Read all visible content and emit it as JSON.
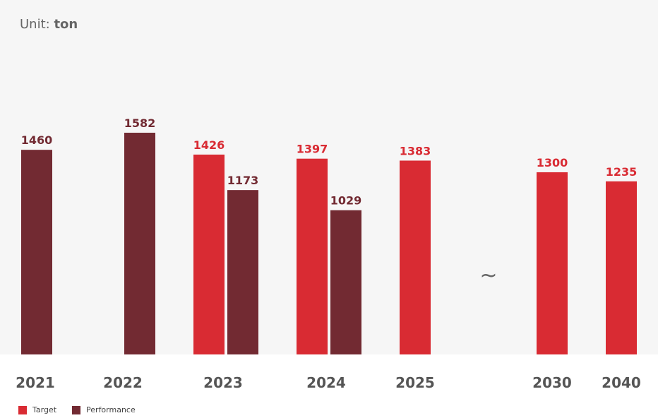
{
  "unit": {
    "prefix": "Unit:",
    "value": "ton"
  },
  "axis_break": "~",
  "colors": {
    "target": "#d92b33",
    "performance": "#722a32",
    "target_text": "#d92b33",
    "performance_text": "#722a32"
  },
  "legend": [
    {
      "key": "target",
      "label": "Target"
    },
    {
      "key": "performance",
      "label": "Performance"
    }
  ],
  "chart_data": {
    "type": "bar",
    "categories": [
      "2021",
      "2022",
      "2023",
      "2024",
      "2025",
      "2030",
      "2040"
    ],
    "series": [
      {
        "name": "Target",
        "values": [
          null,
          null,
          1426,
          1397,
          1383,
          1300,
          1235
        ]
      },
      {
        "name": "Performance",
        "values": [
          1460,
          1582,
          1173,
          1029,
          null,
          null,
          null
        ]
      }
    ],
    "ylim": [
      0,
      2000
    ],
    "grid": false,
    "legend_position": "bottom-left"
  }
}
